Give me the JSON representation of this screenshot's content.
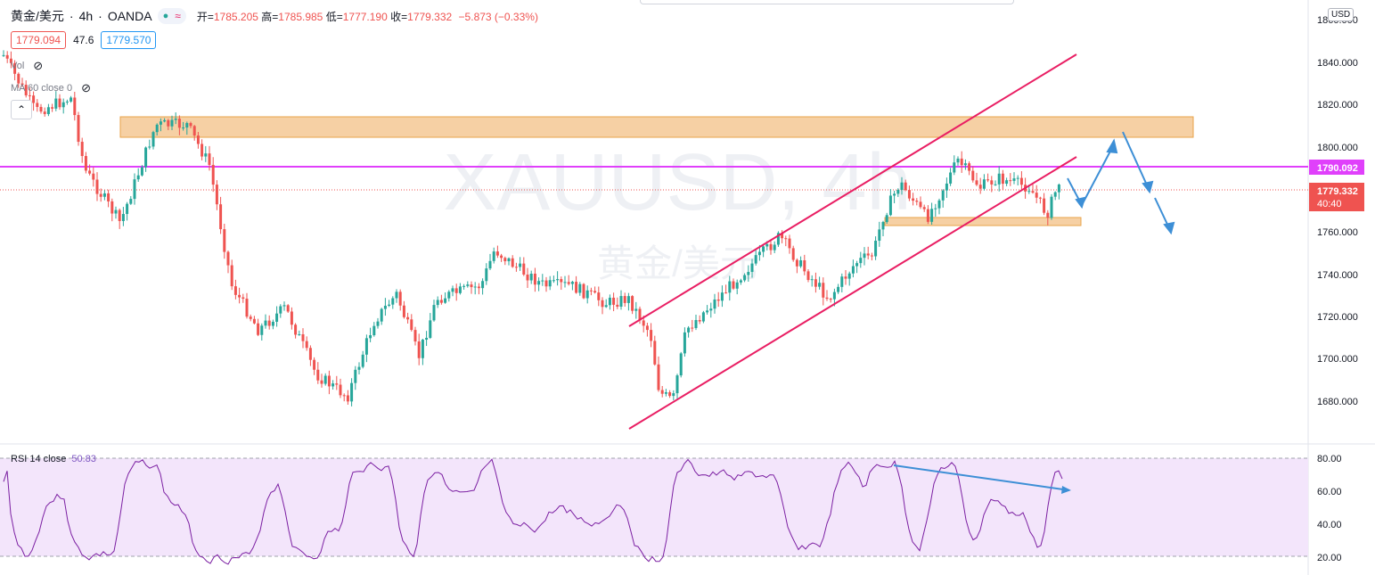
{
  "header": {
    "symbol": "黄金/美元",
    "interval": "4h",
    "source": "OANDA",
    "ohlc": {
      "open_label": "开=",
      "open": "1785.205",
      "high_label": "高=",
      "high": "1785.985",
      "low_label": "低=",
      "low": "1777.190",
      "close_label": "收=",
      "close": "1779.332",
      "change": "−5.873 (−0.33%)"
    },
    "bid": "1779.094",
    "spread": "47.6",
    "ask": "1779.570"
  },
  "indicators": {
    "vol_label": "Vol",
    "ma_label": "MA 60 close 0"
  },
  "watermark": {
    "ticker": "XAUUSD, 4h",
    "name": "黄金/美元"
  },
  "price_axis": {
    "currency": "USD",
    "ticks": [
      "1860.000",
      "1840.000",
      "1820.000",
      "1800.000",
      "1760.000",
      "1740.000",
      "1720.000",
      "1700.000",
      "1680.000"
    ],
    "horizontal_line_label": "1790.092",
    "current_price_label": "1779.332",
    "countdown": "40:40"
  },
  "rsi": {
    "label": "RSI 14 close",
    "value": "50.83",
    "ticks": [
      "80.00",
      "60.00",
      "40.00",
      "20.00"
    ]
  },
  "colors": {
    "up": "#26a69a",
    "down": "#ef5350",
    "hline": "#e040fb",
    "channel": "#e91e63",
    "zone": "#f5c894",
    "arrow": "#3d8fd6",
    "rsi_line": "#7b1fa2",
    "rsi_band": "#f3e5fb"
  }
}
